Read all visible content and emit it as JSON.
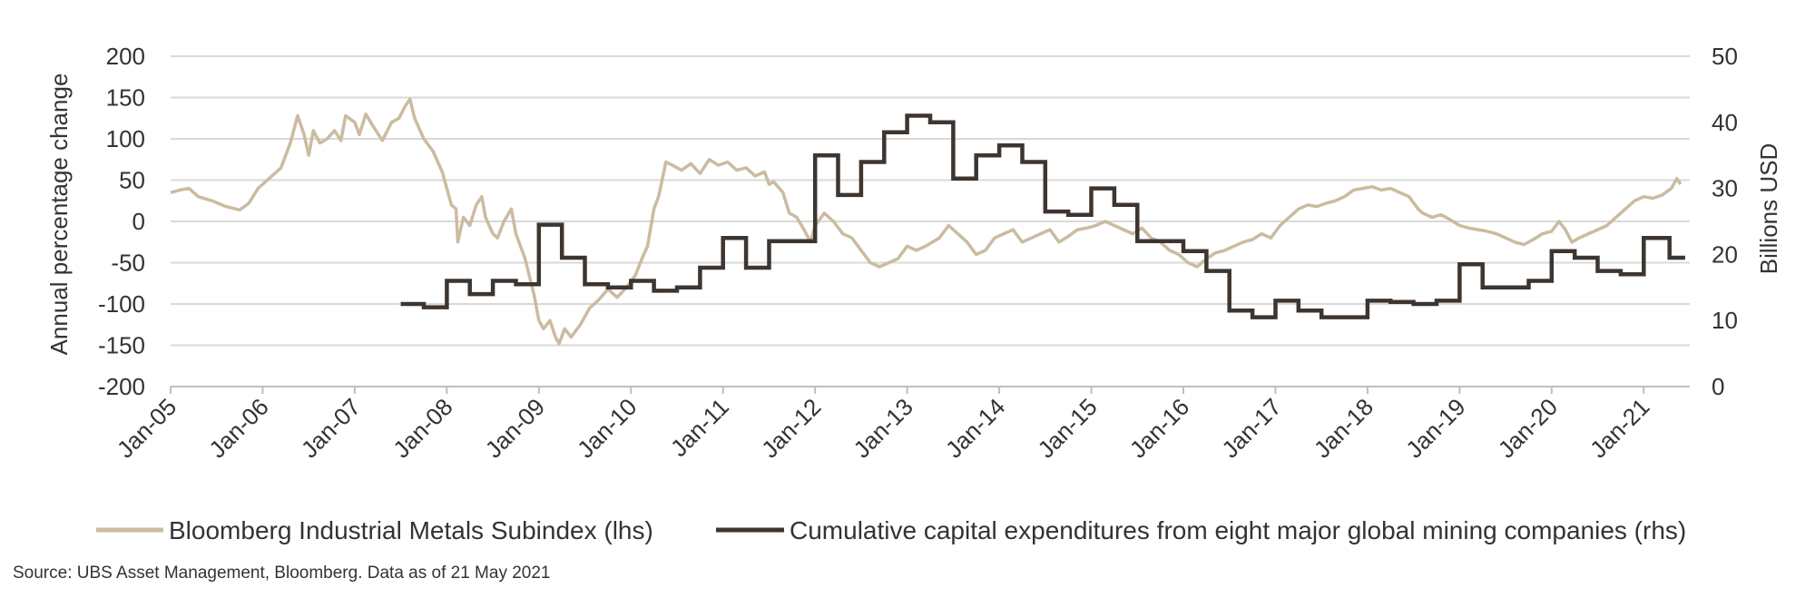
{
  "chart_data": {
    "type": "line",
    "title": "",
    "xlabel": "",
    "ylabel_left": "Annual percentage change",
    "ylabel_right": "Billions USD",
    "ylim_left": [
      -200,
      200
    ],
    "ylim_right": [
      0,
      50
    ],
    "yticks_left": [
      200,
      150,
      100,
      50,
      0,
      -50,
      -100,
      -150,
      -200
    ],
    "yticks_right": [
      50,
      40,
      30,
      20,
      10,
      0
    ],
    "x_range": [
      2005.0,
      2021.5
    ],
    "xticks": [
      {
        "t": 2005,
        "label": "Jan-05"
      },
      {
        "t": 2006,
        "label": "Jan-06"
      },
      {
        "t": 2007,
        "label": "Jan-07"
      },
      {
        "t": 2008,
        "label": "Jan-08"
      },
      {
        "t": 2009,
        "label": "Jan-09"
      },
      {
        "t": 2010,
        "label": "Jan-10"
      },
      {
        "t": 2011,
        "label": "Jan-11"
      },
      {
        "t": 2012,
        "label": "Jan-12"
      },
      {
        "t": 2013,
        "label": "Jan-13"
      },
      {
        "t": 2014,
        "label": "Jan-14"
      },
      {
        "t": 2015,
        "label": "Jan-15"
      },
      {
        "t": 2016,
        "label": "Jan-16"
      },
      {
        "t": 2017,
        "label": "Jan-17"
      },
      {
        "t": 2018,
        "label": "Jan-18"
      },
      {
        "t": 2019,
        "label": "Jan-19"
      },
      {
        "t": 2020,
        "label": "Jan-20"
      },
      {
        "t": 2021,
        "label": "Jan-21"
      }
    ],
    "grid": true,
    "series": [
      {
        "name": "Bloomberg Industrial Metals Subindex (lhs)",
        "axis": "left",
        "color": "#CBBBA0",
        "style": "line",
        "points": [
          [
            2005.0,
            35
          ],
          [
            2005.1,
            38
          ],
          [
            2005.2,
            40
          ],
          [
            2005.3,
            30
          ],
          [
            2005.45,
            25
          ],
          [
            2005.6,
            18
          ],
          [
            2005.75,
            14
          ],
          [
            2005.85,
            22
          ],
          [
            2005.95,
            40
          ],
          [
            2006.05,
            50
          ],
          [
            2006.2,
            65
          ],
          [
            2006.3,
            95
          ],
          [
            2006.38,
            128
          ],
          [
            2006.45,
            105
          ],
          [
            2006.5,
            80
          ],
          [
            2006.55,
            110
          ],
          [
            2006.62,
            95
          ],
          [
            2006.7,
            100
          ],
          [
            2006.78,
            110
          ],
          [
            2006.85,
            98
          ],
          [
            2006.9,
            128
          ],
          [
            2007.0,
            120
          ],
          [
            2007.05,
            105
          ],
          [
            2007.12,
            130
          ],
          [
            2007.2,
            115
          ],
          [
            2007.3,
            98
          ],
          [
            2007.4,
            120
          ],
          [
            2007.48,
            125
          ],
          [
            2007.55,
            140
          ],
          [
            2007.6,
            148
          ],
          [
            2007.65,
            125
          ],
          [
            2007.75,
            100
          ],
          [
            2007.85,
            85
          ],
          [
            2007.95,
            60
          ],
          [
            2008.0,
            40
          ],
          [
            2008.05,
            20
          ],
          [
            2008.1,
            15
          ],
          [
            2008.12,
            -25
          ],
          [
            2008.18,
            5
          ],
          [
            2008.25,
            -5
          ],
          [
            2008.32,
            20
          ],
          [
            2008.38,
            30
          ],
          [
            2008.42,
            5
          ],
          [
            2008.5,
            -15
          ],
          [
            2008.55,
            -20
          ],
          [
            2008.62,
            0
          ],
          [
            2008.7,
            15
          ],
          [
            2008.75,
            -15
          ],
          [
            2008.85,
            -45
          ],
          [
            2008.95,
            -90
          ],
          [
            2009.0,
            -120
          ],
          [
            2009.05,
            -130
          ],
          [
            2009.12,
            -120
          ],
          [
            2009.18,
            -140
          ],
          [
            2009.22,
            -148
          ],
          [
            2009.28,
            -130
          ],
          [
            2009.35,
            -140
          ],
          [
            2009.45,
            -125
          ],
          [
            2009.55,
            -105
          ],
          [
            2009.65,
            -95
          ],
          [
            2009.75,
            -82
          ],
          [
            2009.85,
            -92
          ],
          [
            2009.95,
            -80
          ],
          [
            2010.05,
            -65
          ],
          [
            2010.12,
            -45
          ],
          [
            2010.18,
            -30
          ],
          [
            2010.25,
            15
          ],
          [
            2010.3,
            30
          ],
          [
            2010.38,
            72
          ],
          [
            2010.45,
            68
          ],
          [
            2010.55,
            62
          ],
          [
            2010.65,
            70
          ],
          [
            2010.75,
            58
          ],
          [
            2010.85,
            75
          ],
          [
            2010.95,
            68
          ],
          [
            2011.05,
            72
          ],
          [
            2011.15,
            62
          ],
          [
            2011.25,
            65
          ],
          [
            2011.35,
            55
          ],
          [
            2011.45,
            60
          ],
          [
            2011.5,
            45
          ],
          [
            2011.55,
            48
          ],
          [
            2011.65,
            35
          ],
          [
            2011.72,
            10
          ],
          [
            2011.8,
            5
          ],
          [
            2011.88,
            -10
          ],
          [
            2011.95,
            -25
          ],
          [
            2012.0,
            -5
          ],
          [
            2012.1,
            10
          ],
          [
            2012.2,
            0
          ],
          [
            2012.3,
            -15
          ],
          [
            2012.4,
            -20
          ],
          [
            2012.5,
            -35
          ],
          [
            2012.6,
            -50
          ],
          [
            2012.7,
            -55
          ],
          [
            2012.8,
            -50
          ],
          [
            2012.9,
            -45
          ],
          [
            2013.0,
            -30
          ],
          [
            2013.1,
            -35
          ],
          [
            2013.2,
            -30
          ],
          [
            2013.35,
            -20
          ],
          [
            2013.45,
            -5
          ],
          [
            2013.55,
            -15
          ],
          [
            2013.65,
            -25
          ],
          [
            2013.75,
            -40
          ],
          [
            2013.85,
            -35
          ],
          [
            2013.95,
            -20
          ],
          [
            2014.05,
            -15
          ],
          [
            2014.15,
            -10
          ],
          [
            2014.25,
            -25
          ],
          [
            2014.35,
            -20
          ],
          [
            2014.45,
            -15
          ],
          [
            2014.55,
            -10
          ],
          [
            2014.65,
            -25
          ],
          [
            2014.75,
            -18
          ],
          [
            2014.85,
            -10
          ],
          [
            2014.95,
            -8
          ],
          [
            2015.05,
            -5
          ],
          [
            2015.15,
            0
          ],
          [
            2015.25,
            -5
          ],
          [
            2015.35,
            -10
          ],
          [
            2015.45,
            -15
          ],
          [
            2015.55,
            -8
          ],
          [
            2015.65,
            -20
          ],
          [
            2015.75,
            -25
          ],
          [
            2015.85,
            -35
          ],
          [
            2015.95,
            -40
          ],
          [
            2016.05,
            -50
          ],
          [
            2016.15,
            -55
          ],
          [
            2016.25,
            -45
          ],
          [
            2016.35,
            -38
          ],
          [
            2016.45,
            -35
          ],
          [
            2016.55,
            -30
          ],
          [
            2016.65,
            -25
          ],
          [
            2016.75,
            -22
          ],
          [
            2016.85,
            -15
          ],
          [
            2016.95,
            -20
          ],
          [
            2017.05,
            -5
          ],
          [
            2017.15,
            5
          ],
          [
            2017.25,
            15
          ],
          [
            2017.35,
            20
          ],
          [
            2017.45,
            18
          ],
          [
            2017.55,
            22
          ],
          [
            2017.65,
            25
          ],
          [
            2017.75,
            30
          ],
          [
            2017.85,
            38
          ],
          [
            2017.95,
            40
          ],
          [
            2018.05,
            42
          ],
          [
            2018.15,
            38
          ],
          [
            2018.25,
            40
          ],
          [
            2018.35,
            35
          ],
          [
            2018.45,
            30
          ],
          [
            2018.55,
            15
          ],
          [
            2018.6,
            10
          ],
          [
            2018.7,
            5
          ],
          [
            2018.8,
            8
          ],
          [
            2018.9,
            2
          ],
          [
            2019.0,
            -5
          ],
          [
            2019.1,
            -8
          ],
          [
            2019.2,
            -10
          ],
          [
            2019.3,
            -12
          ],
          [
            2019.4,
            -15
          ],
          [
            2019.5,
            -20
          ],
          [
            2019.6,
            -25
          ],
          [
            2019.7,
            -28
          ],
          [
            2019.8,
            -22
          ],
          [
            2019.9,
            -15
          ],
          [
            2020.0,
            -12
          ],
          [
            2020.08,
            0
          ],
          [
            2020.15,
            -10
          ],
          [
            2020.22,
            -25
          ],
          [
            2020.3,
            -20
          ],
          [
            2020.4,
            -15
          ],
          [
            2020.5,
            -10
          ],
          [
            2020.6,
            -5
          ],
          [
            2020.7,
            5
          ],
          [
            2020.8,
            15
          ],
          [
            2020.9,
            25
          ],
          [
            2021.0,
            30
          ],
          [
            2021.1,
            28
          ],
          [
            2021.2,
            32
          ],
          [
            2021.3,
            40
          ],
          [
            2021.36,
            52
          ],
          [
            2021.4,
            45
          ]
        ]
      },
      {
        "name": "Cumulative capital expenditures from eight major global mining companies (rhs)",
        "axis": "right",
        "color": "#3D3530",
        "style": "step",
        "start": 2007.5,
        "end": 2021.45,
        "steps": [
          [
            2007.5,
            12.5
          ],
          [
            2007.75,
            12
          ],
          [
            2008.0,
            16
          ],
          [
            2008.25,
            14
          ],
          [
            2008.5,
            16
          ],
          [
            2008.75,
            15.5
          ],
          [
            2009.0,
            24.5
          ],
          [
            2009.25,
            19.5
          ],
          [
            2009.5,
            15.5
          ],
          [
            2009.75,
            15
          ],
          [
            2010.0,
            16
          ],
          [
            2010.25,
            14.5
          ],
          [
            2010.5,
            15
          ],
          [
            2010.75,
            18
          ],
          [
            2011.0,
            22.5
          ],
          [
            2011.25,
            18
          ],
          [
            2011.5,
            22
          ],
          [
            2011.75,
            22
          ],
          [
            2012.0,
            35
          ],
          [
            2012.25,
            29
          ],
          [
            2012.5,
            34
          ],
          [
            2012.75,
            38.5
          ],
          [
            2013.0,
            41
          ],
          [
            2013.25,
            40
          ],
          [
            2013.5,
            31.5
          ],
          [
            2013.75,
            35
          ],
          [
            2014.0,
            36.5
          ],
          [
            2014.25,
            34
          ],
          [
            2014.5,
            26.5
          ],
          [
            2014.75,
            26
          ],
          [
            2015.0,
            30
          ],
          [
            2015.25,
            27.5
          ],
          [
            2015.5,
            22
          ],
          [
            2015.75,
            22
          ],
          [
            2016.0,
            20.5
          ],
          [
            2016.25,
            17.5
          ],
          [
            2016.5,
            11.5
          ],
          [
            2016.75,
            10.5
          ],
          [
            2017.0,
            13
          ],
          [
            2017.25,
            11.5
          ],
          [
            2017.5,
            10.5
          ],
          [
            2017.75,
            10.5
          ],
          [
            2018.0,
            13
          ],
          [
            2018.25,
            12.8
          ],
          [
            2018.5,
            12.5
          ],
          [
            2018.75,
            13
          ],
          [
            2019.0,
            18.5
          ],
          [
            2019.25,
            15
          ],
          [
            2019.5,
            15
          ],
          [
            2019.75,
            16
          ],
          [
            2020.0,
            20.5
          ],
          [
            2020.25,
            19.5
          ],
          [
            2020.5,
            17.5
          ],
          [
            2020.75,
            17
          ],
          [
            2021.0,
            22.5
          ],
          [
            2021.28,
            19.5
          ]
        ]
      }
    ],
    "legend": {
      "position": "bottom",
      "items": [
        {
          "label": "Bloomberg Industrial Metals Subindex (lhs)",
          "color": "#CBBBA0"
        },
        {
          "label": "Cumulative capital expenditures from eight major global mining companies (rhs)",
          "color": "#3D3530"
        }
      ]
    }
  },
  "source": "Source: UBS Asset Management, Bloomberg. Data as of 21 May 2021"
}
